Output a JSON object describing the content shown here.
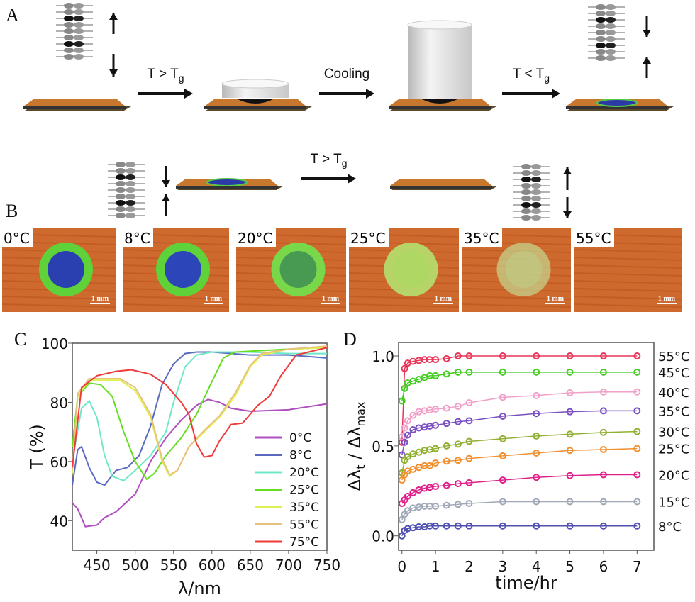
{
  "panels": {
    "a": "A",
    "b": "B",
    "c": "C",
    "d": "D"
  },
  "panel_a": {
    "arrow_labels": [
      {
        "main": "T > T",
        "sub": "g"
      },
      {
        "main": "Cooling",
        "sub": ""
      },
      {
        "main": "T < T",
        "sub": "g"
      },
      {
        "main": "T > T",
        "sub": "g"
      }
    ]
  },
  "panel_b": {
    "images": [
      {
        "temp": "0°C",
        "scale": "1 mm",
        "core": "#2a3fb0",
        "ring": "#5fd23a",
        "core_opacity": 1
      },
      {
        "temp": "8°C",
        "scale": "1 mm",
        "core": "#2c45b8",
        "ring": "#5fd23a",
        "core_opacity": 1
      },
      {
        "temp": "20°C",
        "scale": "1 mm",
        "core": "#3c8a52",
        "ring": "#78d84a",
        "core_opacity": 0.8
      },
      {
        "temp": "25°C",
        "scale": "1 mm",
        "core": "#a8d860",
        "ring": "#b4e070",
        "core_opacity": 0.6
      },
      {
        "temp": "35°C",
        "scale": "1 mm",
        "core": "#b8d890",
        "ring": "#c4d890",
        "core_opacity": 0.4
      },
      {
        "temp": "55°C",
        "scale": "1 mm",
        "core": "#d27a3a",
        "ring": "#d27a3a",
        "core_opacity": 0
      }
    ]
  },
  "chart_data": [
    {
      "type": "line",
      "panel": "C",
      "xlabel": "λ/nm",
      "ylabel": "T (%)",
      "xlim": [
        418,
        750
      ],
      "ylim": [
        30,
        100
      ],
      "xticks": [
        450,
        500,
        550,
        600,
        650,
        700,
        750
      ],
      "yticks": [
        40,
        60,
        80,
        100
      ],
      "legend_position": "bottom-right",
      "series": [
        {
          "name": "0°C",
          "color": "#b050c0",
          "points": [
            [
              418,
              46
            ],
            [
              425,
              44
            ],
            [
              435,
              38
            ],
            [
              450,
              38.5
            ],
            [
              460,
              41
            ],
            [
              475,
              43
            ],
            [
              500,
              49
            ],
            [
              520,
              60
            ],
            [
              540,
              68
            ],
            [
              560,
              74
            ],
            [
              580,
              79
            ],
            [
              595,
              81
            ],
            [
              610,
              80
            ],
            [
              625,
              78
            ],
            [
              650,
              77
            ],
            [
              700,
              77.5
            ],
            [
              750,
              79.5
            ]
          ]
        },
        {
          "name": "8°C",
          "color": "#5a6ac0",
          "points": [
            [
              418,
              52
            ],
            [
              425,
              64
            ],
            [
              430,
              65
            ],
            [
              440,
              58
            ],
            [
              450,
              53
            ],
            [
              460,
              52
            ],
            [
              475,
              57
            ],
            [
              490,
              58
            ],
            [
              505,
              62
            ],
            [
              520,
              72
            ],
            [
              535,
              86
            ],
            [
              550,
              93
            ],
            [
              565,
              96.5
            ],
            [
              580,
              97
            ],
            [
              600,
              97
            ],
            [
              650,
              96
            ],
            [
              700,
              96
            ],
            [
              750,
              95
            ]
          ]
        },
        {
          "name": "20°C",
          "color": "#70e8c8",
          "points": [
            [
              418,
              60
            ],
            [
              430,
              78
            ],
            [
              440,
              80.5
            ],
            [
              450,
              75
            ],
            [
              460,
              62
            ],
            [
              470,
              55
            ],
            [
              485,
              53.5
            ],
            [
              500,
              57
            ],
            [
              520,
              62
            ],
            [
              540,
              70
            ],
            [
              550,
              80
            ],
            [
              565,
              92
            ],
            [
              580,
              96
            ],
            [
              600,
              97
            ],
            [
              650,
              97
            ],
            [
              700,
              96.5
            ],
            [
              750,
              96.5
            ]
          ]
        },
        {
          "name": "25°C",
          "color": "#66dd22",
          "points": [
            [
              418,
              65
            ],
            [
              425,
              82
            ],
            [
              440,
              86.5
            ],
            [
              455,
              86
            ],
            [
              470,
              82
            ],
            [
              485,
              70
            ],
            [
              500,
              60
            ],
            [
              515,
              54
            ],
            [
              525,
              56
            ],
            [
              540,
              62
            ],
            [
              560,
              68
            ],
            [
              580,
              76
            ],
            [
              600,
              87
            ],
            [
              615,
              95
            ],
            [
              630,
              97
            ],
            [
              700,
              98
            ],
            [
              750,
              98.5
            ]
          ]
        },
        {
          "name": "35°C",
          "color": "#e0f050",
          "points": [
            [
              418,
              56
            ],
            [
              425,
              82
            ],
            [
              440,
              87.5
            ],
            [
              480,
              87.5
            ],
            [
              500,
              84
            ],
            [
              520,
              75
            ],
            [
              535,
              60
            ],
            [
              545,
              55
            ],
            [
              555,
              57
            ],
            [
              570,
              65
            ],
            [
              590,
              70
            ],
            [
              610,
              75
            ],
            [
              630,
              82
            ],
            [
              650,
              92
            ],
            [
              665,
              96
            ],
            [
              700,
              98
            ],
            [
              750,
              98.5
            ]
          ]
        },
        {
          "name": "55°C",
          "color": "#e8c080",
          "points": [
            [
              418,
              57
            ],
            [
              425,
              83
            ],
            [
              440,
              88
            ],
            [
              480,
              88
            ],
            [
              500,
              85
            ],
            [
              520,
              76
            ],
            [
              535,
              61
            ],
            [
              545,
              55.5
            ],
            [
              555,
              57
            ],
            [
              570,
              65
            ],
            [
              590,
              70.5
            ],
            [
              610,
              75.5
            ],
            [
              630,
              83
            ],
            [
              650,
              92.5
            ],
            [
              665,
              96.5
            ],
            [
              700,
              98
            ],
            [
              750,
              99
            ]
          ]
        },
        {
          "name": "75°C",
          "color": "#f03a3a",
          "points": [
            [
              418,
              58
            ],
            [
              430,
              85
            ],
            [
              450,
              89
            ],
            [
              475,
              90.5
            ],
            [
              495,
              91
            ],
            [
              520,
              89.5
            ],
            [
              540,
              86
            ],
            [
              560,
              80
            ],
            [
              570,
              76
            ],
            [
              580,
              66
            ],
            [
              590,
              61.5
            ],
            [
              600,
              62
            ],
            [
              610,
              67
            ],
            [
              625,
              72.5
            ],
            [
              640,
              73
            ],
            [
              650,
              76
            ],
            [
              660,
              79
            ],
            [
              675,
              82
            ],
            [
              690,
              89
            ],
            [
              710,
              96
            ],
            [
              750,
              98.5
            ]
          ]
        }
      ]
    },
    {
      "type": "line",
      "panel": "D",
      "xlabel": "time/hr",
      "ylabel": "Δλt / Δλmax",
      "ylabel_parts": {
        "a": "Δλ",
        "a_sub": "t",
        "sep": " / Δλ",
        "b_sub": "max"
      },
      "xlim": [
        -0.1,
        7.5
      ],
      "ylim": [
        -0.08,
        1.075
      ],
      "xticks": [
        0,
        1,
        2,
        3,
        4,
        5,
        6,
        7
      ],
      "yticks": [
        0.0,
        0.5,
        1.0
      ],
      "ytick_labels": [
        "0.0",
        "0.5",
        "1.0"
      ],
      "legend_position": "right",
      "x": [
        0,
        0.08,
        0.17,
        0.33,
        0.5,
        0.67,
        0.83,
        1,
        1.33,
        1.67,
        2,
        3,
        4,
        5,
        6,
        7
      ],
      "series": [
        {
          "name": "55°C",
          "color": "#e8365a",
          "values": [
            0.52,
            0.93,
            0.96,
            0.97,
            0.975,
            0.98,
            0.98,
            0.98,
            0.985,
            1.0,
            1.0,
            1.0,
            1.0,
            1.0,
            1.0,
            1.0
          ]
        },
        {
          "name": "45°C",
          "color": "#44cc22",
          "values": [
            0.75,
            0.82,
            0.85,
            0.86,
            0.87,
            0.88,
            0.89,
            0.89,
            0.9,
            0.91,
            0.91,
            0.91,
            0.91,
            0.91,
            0.91,
            0.91
          ]
        },
        {
          "name": "40°C",
          "color": "#f0a0c8",
          "values": [
            0.55,
            0.6,
            0.64,
            0.67,
            0.69,
            0.695,
            0.7,
            0.705,
            0.71,
            0.72,
            0.74,
            0.77,
            0.78,
            0.795,
            0.8,
            0.8
          ]
        },
        {
          "name": "35°C",
          "color": "#7a4fc0",
          "values": [
            0.45,
            0.52,
            0.56,
            0.59,
            0.6,
            0.605,
            0.61,
            0.615,
            0.625,
            0.635,
            0.64,
            0.665,
            0.68,
            0.69,
            0.695,
            0.695
          ]
        },
        {
          "name": "30°C",
          "color": "#90b030",
          "values": [
            0.35,
            0.42,
            0.44,
            0.455,
            0.465,
            0.475,
            0.48,
            0.485,
            0.5,
            0.51,
            0.525,
            0.54,
            0.555,
            0.565,
            0.575,
            0.58
          ]
        },
        {
          "name": "25°C",
          "color": "#f09030",
          "values": [
            0.31,
            0.34,
            0.36,
            0.37,
            0.38,
            0.39,
            0.39,
            0.405,
            0.415,
            0.42,
            0.43,
            0.445,
            0.46,
            0.475,
            0.48,
            0.485
          ]
        },
        {
          "name": "20°C",
          "color": "#e0208a",
          "values": [
            0.18,
            0.2,
            0.22,
            0.24,
            0.255,
            0.265,
            0.27,
            0.275,
            0.28,
            0.29,
            0.295,
            0.31,
            0.325,
            0.335,
            0.34,
            0.34
          ]
        },
        {
          "name": "15°C",
          "color": "#a0a8b8",
          "values": [
            0.09,
            0.12,
            0.14,
            0.155,
            0.16,
            0.165,
            0.165,
            0.165,
            0.17,
            0.175,
            0.18,
            0.19,
            0.19,
            0.19,
            0.19,
            0.19
          ]
        },
        {
          "name": "8°C",
          "color": "#5050b0",
          "values": [
            0.0,
            0.03,
            0.04,
            0.045,
            0.05,
            0.05,
            0.055,
            0.055,
            0.055,
            0.055,
            0.055,
            0.055,
            0.055,
            0.055,
            0.055,
            0.055
          ]
        }
      ]
    }
  ]
}
